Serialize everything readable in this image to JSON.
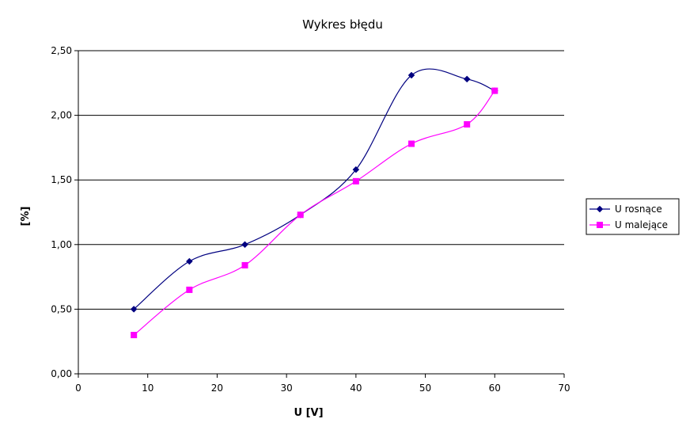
{
  "chart_data": {
    "type": "line",
    "title": "Wykres błędu",
    "xlabel": "U [V]",
    "ylabel": "[%]",
    "xlim": [
      0,
      70
    ],
    "ylim": [
      0,
      2.5
    ],
    "x_ticks": [
      "0",
      "10",
      "20",
      "30",
      "40",
      "50",
      "60",
      "70"
    ],
    "y_ticks": [
      "0,00",
      "0,50",
      "1,00",
      "1,50",
      "2,00",
      "2,50"
    ],
    "grid": "horizontal",
    "legend_position": "right",
    "series": [
      {
        "name": "U rosnące",
        "color": "#000080",
        "marker": "diamond",
        "x": [
          8,
          16,
          24,
          32,
          40,
          48,
          56,
          60
        ],
        "values": [
          0.5,
          0.87,
          1.0,
          1.23,
          1.58,
          2.31,
          2.28,
          2.19
        ]
      },
      {
        "name": "U malejące",
        "color": "#FF00FF",
        "marker": "square",
        "x": [
          8,
          16,
          24,
          32,
          40,
          48,
          56,
          60
        ],
        "values": [
          0.3,
          0.65,
          0.84,
          1.23,
          1.49,
          1.78,
          1.93,
          2.19
        ]
      }
    ]
  }
}
